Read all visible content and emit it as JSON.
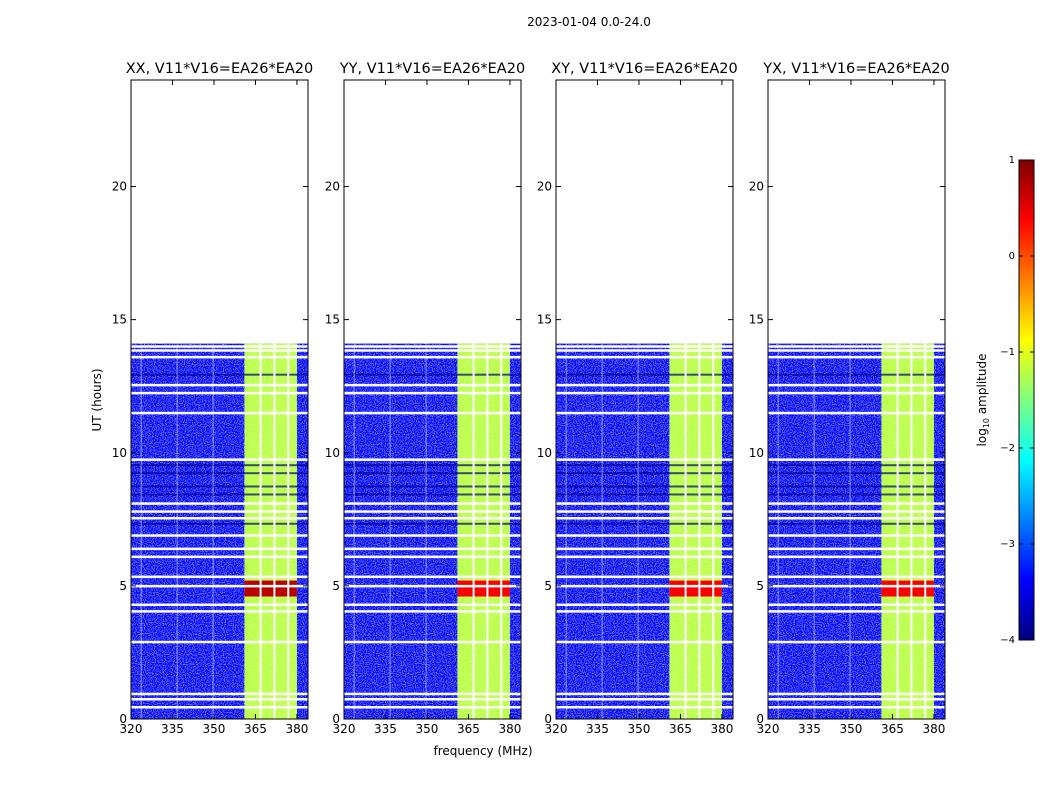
{
  "figure": {
    "suptitle": "2023-01-04 0.0-24.0",
    "shared_xlabel": "frequency (MHz)",
    "shared_ylabel": "UT (hours)"
  },
  "colorbar": {
    "label_prefix": "log",
    "label_sub": "10",
    "label_suffix": " amplitude",
    "min": -4,
    "max": 1,
    "ticks": [
      -4,
      -3,
      -2,
      -1,
      0,
      1
    ],
    "tick_labels": [
      "−4",
      "−3",
      "−2",
      "−1",
      "0",
      "1"
    ],
    "colormap": "jet",
    "colors": [
      "#00007f",
      "#0000ff",
      "#007fff",
      "#00ffff",
      "#7fff7f",
      "#ffff00",
      "#ff7f00",
      "#ff0000",
      "#7f0000"
    ]
  },
  "chart_data": [
    {
      "type": "heatmap",
      "title": "XX, V11*V16=EA26*EA20",
      "polarization": "XX",
      "baseline": "V11*V16=EA26*EA20",
      "xlabel": "frequency (MHz)",
      "ylabel": "UT (hours)",
      "xlim": [
        320,
        384
      ],
      "ylim": [
        0,
        24
      ],
      "xticks": [
        320,
        335,
        350,
        365,
        380
      ],
      "yticks": [
        0,
        5,
        10,
        15,
        20
      ],
      "data_extent_hours": [
        0,
        14.1
      ],
      "background_log10_amplitude": -3.3,
      "bright_band_mhz": [
        361,
        380
      ],
      "bright_band_log10_amplitude": -1.2,
      "peak_hours": [
        4.6,
        5.2
      ],
      "peak_log10_amplitude": 0.7
    },
    {
      "type": "heatmap",
      "title": "YY, V11*V16=EA26*EA20",
      "polarization": "YY",
      "baseline": "V11*V16=EA26*EA20",
      "xlabel": "frequency (MHz)",
      "ylabel": "UT (hours)",
      "xlim": [
        320,
        384
      ],
      "ylim": [
        0,
        24
      ],
      "xticks": [
        320,
        335,
        350,
        365,
        380
      ],
      "yticks": [
        0,
        5,
        10,
        15,
        20
      ],
      "data_extent_hours": [
        0,
        14.1
      ],
      "background_log10_amplitude": -3.3,
      "bright_band_mhz": [
        361,
        380
      ],
      "bright_band_log10_amplitude": -1.2,
      "peak_hours": [
        4.6,
        5.2
      ],
      "peak_log10_amplitude": 0.4
    },
    {
      "type": "heatmap",
      "title": "XY, V11*V16=EA26*EA20",
      "polarization": "XY",
      "baseline": "V11*V16=EA26*EA20",
      "xlabel": "frequency (MHz)",
      "ylabel": "UT (hours)",
      "xlim": [
        320,
        384
      ],
      "ylim": [
        0,
        24
      ],
      "xticks": [
        320,
        335,
        350,
        365,
        380
      ],
      "yticks": [
        0,
        5,
        10,
        15,
        20
      ],
      "data_extent_hours": [
        0,
        14.1
      ],
      "background_log10_amplitude": -3.3,
      "bright_band_mhz": [
        361,
        380
      ],
      "bright_band_log10_amplitude": -1.2,
      "peak_hours": [
        4.6,
        5.2
      ],
      "peak_log10_amplitude": 0.4
    },
    {
      "type": "heatmap",
      "title": "YX, V11*V16=EA26*EA20",
      "polarization": "YX",
      "baseline": "V11*V16=EA26*EA20",
      "xlabel": "frequency (MHz)",
      "ylabel": "UT (hours)",
      "xlim": [
        320,
        384
      ],
      "ylim": [
        0,
        24
      ],
      "xticks": [
        320,
        335,
        350,
        365,
        380
      ],
      "yticks": [
        0,
        5,
        10,
        15,
        20
      ],
      "data_extent_hours": [
        0,
        14.1
      ],
      "background_log10_amplitude": -3.3,
      "bright_band_mhz": [
        361,
        380
      ],
      "bright_band_log10_amplitude": -1.2,
      "peak_hours": [
        4.6,
        5.2
      ],
      "peak_log10_amplitude": 0.4
    }
  ],
  "flagged_time_gaps_hours": [
    0.45,
    0.75,
    0.95,
    2.9,
    4.05,
    4.3,
    5.0,
    5.35,
    6.1,
    6.4,
    6.9,
    7.55,
    7.8,
    8.1,
    9.75,
    11.5,
    12.25,
    12.55,
    13.6,
    13.85,
    14.0
  ],
  "flagged_freq_channels_mhz": [
    323.5,
    336.5,
    349.5,
    366.5,
    371.5,
    376.5
  ]
}
